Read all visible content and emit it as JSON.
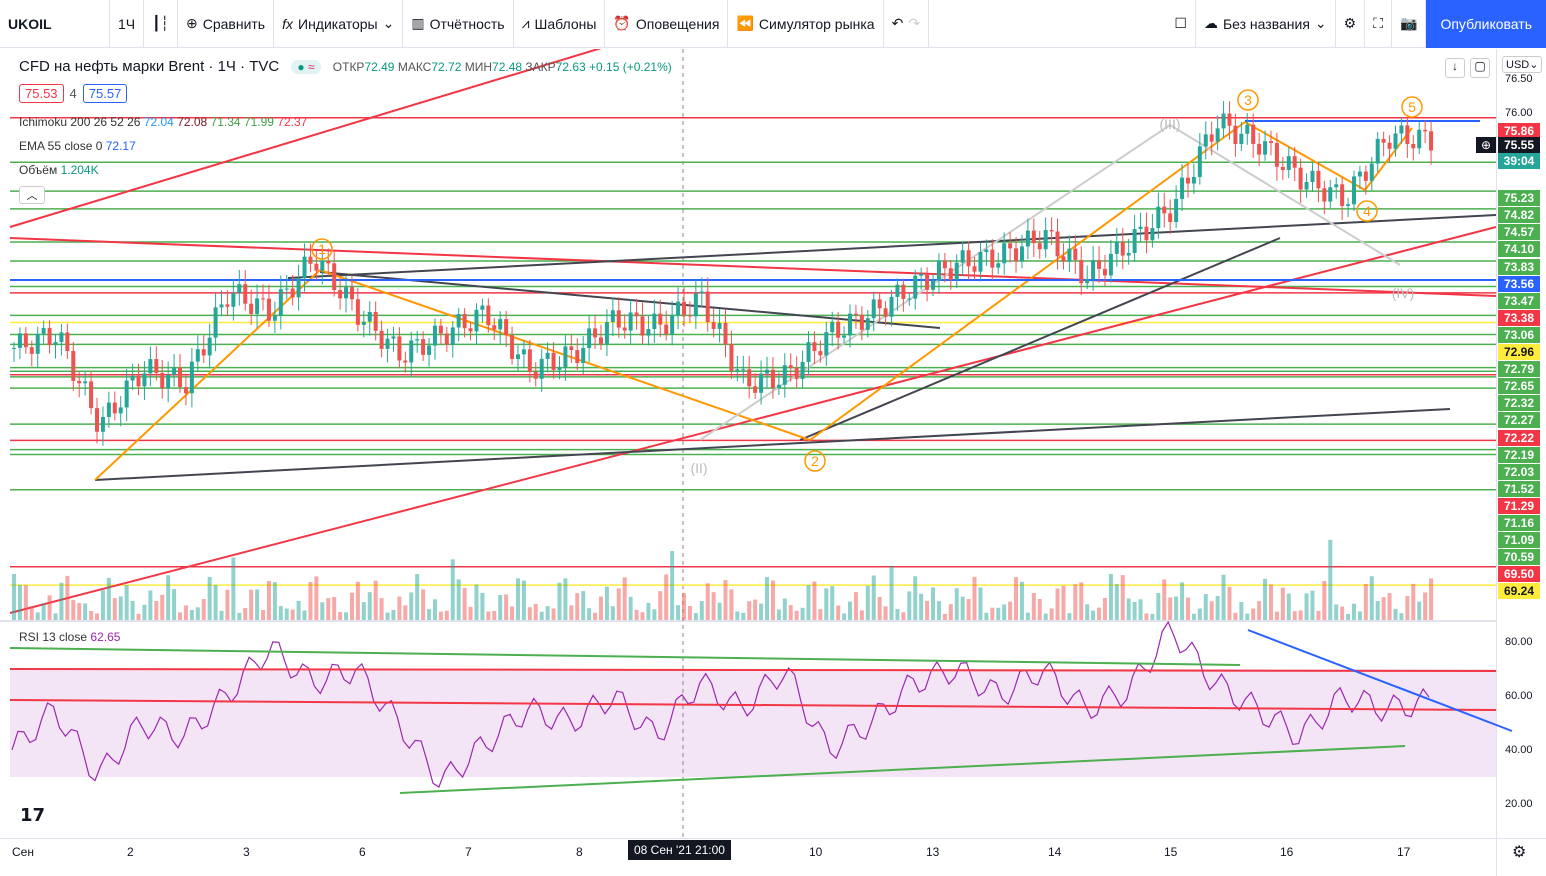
{
  "toolbar": {
    "symbol": "UKOIL",
    "interval": "1Ч",
    "compare": "Сравнить",
    "indicators": "Индикаторы",
    "reports": "Отчётность",
    "templates": "Шаблоны",
    "alerts": "Оповещения",
    "replay": "Симулятор рынка",
    "layout_name": "Без названия",
    "publish": "Опубликовать"
  },
  "legend": {
    "title": "CFD на нефть марки Brent · 1Ч · TVC",
    "ohlc": {
      "o_label": "ОТКР",
      "o": "72.49",
      "h_label": "МАКС",
      "h": "72.72",
      "l_label": "МИН",
      "l": "72.48",
      "c_label": "ЗАКР",
      "c": "72.63",
      "change": "+0.15 (+0.21%)"
    },
    "sell": "75.53",
    "spread": "4",
    "buy": "75.57",
    "ichimoku": {
      "name": "Ichimoku 200 26 52 26",
      "v1": "72.04",
      "v2": "72.08",
      "v3": "71.34",
      "v4": "71.99",
      "v5": "72.37"
    },
    "ema": {
      "name": "EMA 55 close 0",
      "value": "72.17"
    },
    "volume": {
      "name": "Объём",
      "value": "1.204K"
    },
    "rsi": {
      "name": "RSI 13 close",
      "value": "62.65"
    }
  },
  "currency": "USD",
  "price_axis": {
    "ticks": [
      "76.50",
      "76.00"
    ],
    "current": "75.55",
    "countdown": "39:04",
    "levels": [
      {
        "v": "75.86",
        "c": "#f23645"
      },
      {
        "v": "75.23",
        "c": "#4caf50"
      },
      {
        "v": "74.82",
        "c": "#4caf50"
      },
      {
        "v": "74.57",
        "c": "#4caf50"
      },
      {
        "v": "74.10",
        "c": "#4caf50"
      },
      {
        "v": "73.83",
        "c": "#4caf50"
      },
      {
        "v": "73.56",
        "c": "#2962ff"
      },
      {
        "v": "73.47",
        "c": "#4caf50"
      },
      {
        "v": "73.38",
        "c": "#f23645"
      },
      {
        "v": "73.06",
        "c": "#4caf50"
      },
      {
        "v": "72.96",
        "c": "#ffeb3b"
      },
      {
        "v": "72.79",
        "c": "#4caf50"
      },
      {
        "v": "72.65",
        "c": "#4caf50"
      },
      {
        "v": "72.32",
        "c": "#4caf50"
      },
      {
        "v": "72.27",
        "c": "#4caf50"
      },
      {
        "v": "72.22",
        "c": "#f23645"
      },
      {
        "v": "72.19",
        "c": "#4caf50"
      },
      {
        "v": "72.03",
        "c": "#4caf50"
      },
      {
        "v": "71.52",
        "c": "#4caf50"
      },
      {
        "v": "71.29",
        "c": "#f23645"
      },
      {
        "v": "71.16",
        "c": "#4caf50"
      },
      {
        "v": "71.09",
        "c": "#4caf50"
      },
      {
        "v": "70.59",
        "c": "#4caf50"
      },
      {
        "v": "69.50",
        "c": "#f23645"
      },
      {
        "v": "69.24",
        "c": "#ffeb3b"
      }
    ]
  },
  "rsi_axis": [
    "80.00",
    "60.00",
    "40.00",
    "20.00"
  ],
  "time_axis": [
    "Сен",
    "2",
    "3",
    "6",
    "7",
    "8",
    "10",
    "13",
    "14",
    "15",
    "16",
    "17"
  ],
  "crosshair_time": "08 Сен '21  21:00",
  "wave_labels": [
    "1",
    "2",
    "3",
    "4",
    "5",
    "(II)",
    "(III)",
    "(IV)"
  ],
  "chart_data": {
    "type": "candlestick",
    "price_path": [
      72.6,
      72.8,
      71.5,
      72.3,
      72.1,
      73.4,
      73.1,
      73.9,
      73.1,
      72.5,
      72.8,
      73.1,
      72.3,
      72.5,
      73.0,
      72.9,
      73.3,
      72.1,
      72.2,
      72.8,
      73.1,
      73.5,
      73.8,
      73.9,
      74.2,
      73.6,
      74.1,
      74.6,
      75.8,
      75.5,
      75.0,
      74.7,
      75.6,
      75.55
    ],
    "rsi_path": [
      40,
      55,
      30,
      50,
      45,
      60,
      78,
      65,
      70,
      50,
      28,
      42,
      55,
      50,
      60,
      45,
      65,
      55,
      70,
      40,
      50,
      65,
      70,
      60,
      70,
      55,
      62,
      85,
      65,
      55,
      45,
      60,
      55,
      58
    ]
  }
}
